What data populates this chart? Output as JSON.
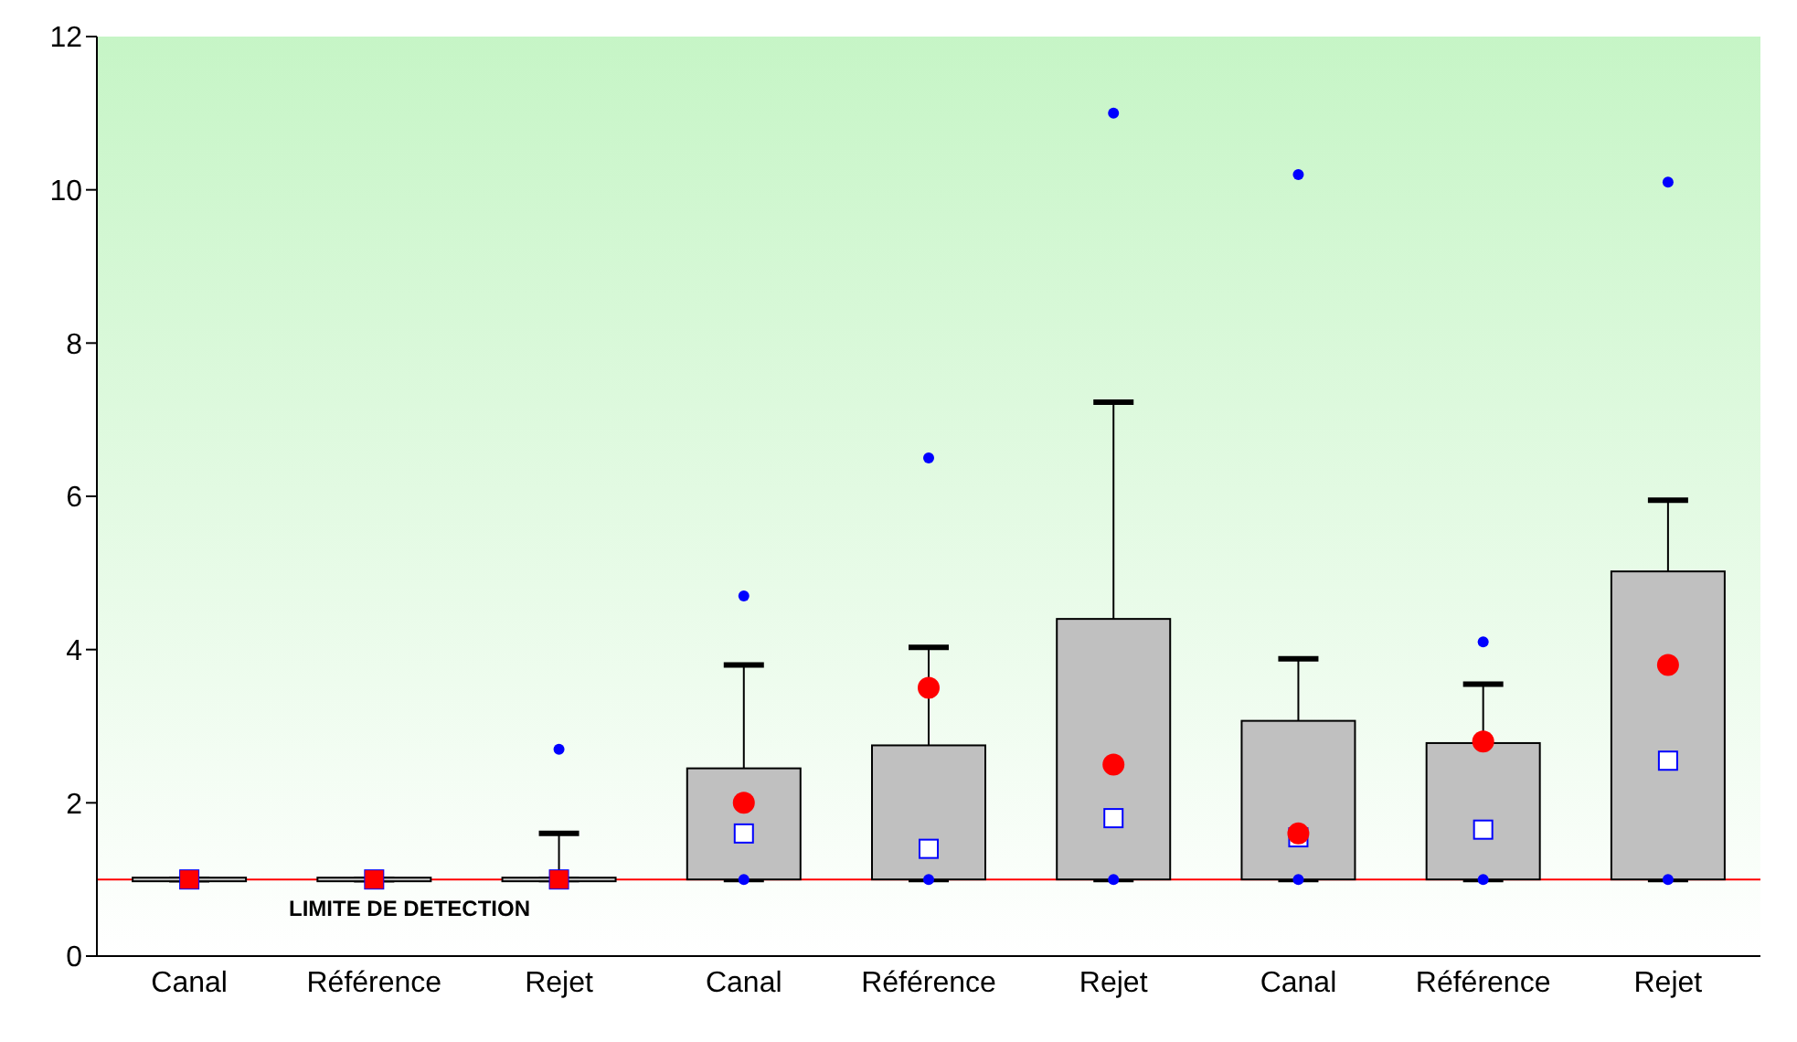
{
  "chart_data": {
    "type": "box",
    "categories": [
      "Canal",
      "Référence",
      "Rejet",
      "Canal",
      "Référence",
      "Rejet",
      "Canal",
      "Référence",
      "Rejet"
    ],
    "color": "#c0c0c0",
    "boxes": [
      {
        "low": 1,
        "q1": 1,
        "median": 1,
        "q3": 1,
        "high": 1,
        "mean": 1
      },
      {
        "low": 1,
        "q1": 1,
        "median": 1,
        "q3": 1,
        "high": 1,
        "mean": 1
      },
      {
        "low": 1,
        "q1": 1,
        "median": 1,
        "q3": 1,
        "high": 1.6,
        "mean": 1,
        "outliers": [
          2.7
        ]
      },
      {
        "low": 1,
        "q1": 1,
        "median": 1.6,
        "q3": 2.45,
        "high": 3.8,
        "mean": 2.0,
        "outliers": [
          1,
          4.7
        ]
      },
      {
        "low": 1,
        "q1": 1,
        "median": 1.4,
        "q3": 2.75,
        "high": 4.03,
        "mean": 3.5,
        "outliers": [
          1,
          6.5
        ]
      },
      {
        "low": 1,
        "q1": 1,
        "median": 1.8,
        "q3": 4.4,
        "high": 7.23,
        "mean": 2.5,
        "outliers": [
          1,
          11.0
        ]
      },
      {
        "low": 1,
        "q1": 1,
        "median": 1.55,
        "q3": 3.07,
        "high": 3.88,
        "mean": 1.6,
        "outliers": [
          1,
          10.2
        ]
      },
      {
        "low": 1,
        "q1": 1,
        "median": 1.65,
        "q3": 2.78,
        "high": 3.55,
        "mean": 2.8,
        "outliers": [
          1,
          4.1
        ]
      },
      {
        "low": 1,
        "q1": 1,
        "median": 2.55,
        "q3": 5.02,
        "high": 5.95,
        "mean": 3.8,
        "outliers": [
          1,
          10.1
        ]
      }
    ],
    "ylim": [
      0,
      12
    ],
    "yticks": [
      0,
      2,
      4,
      6,
      8,
      10,
      12
    ],
    "ref_lines": [
      {
        "axis": "y",
        "value": 1,
        "label": "LIMITE DE DETECTION",
        "color": "#ff0000"
      }
    ]
  }
}
